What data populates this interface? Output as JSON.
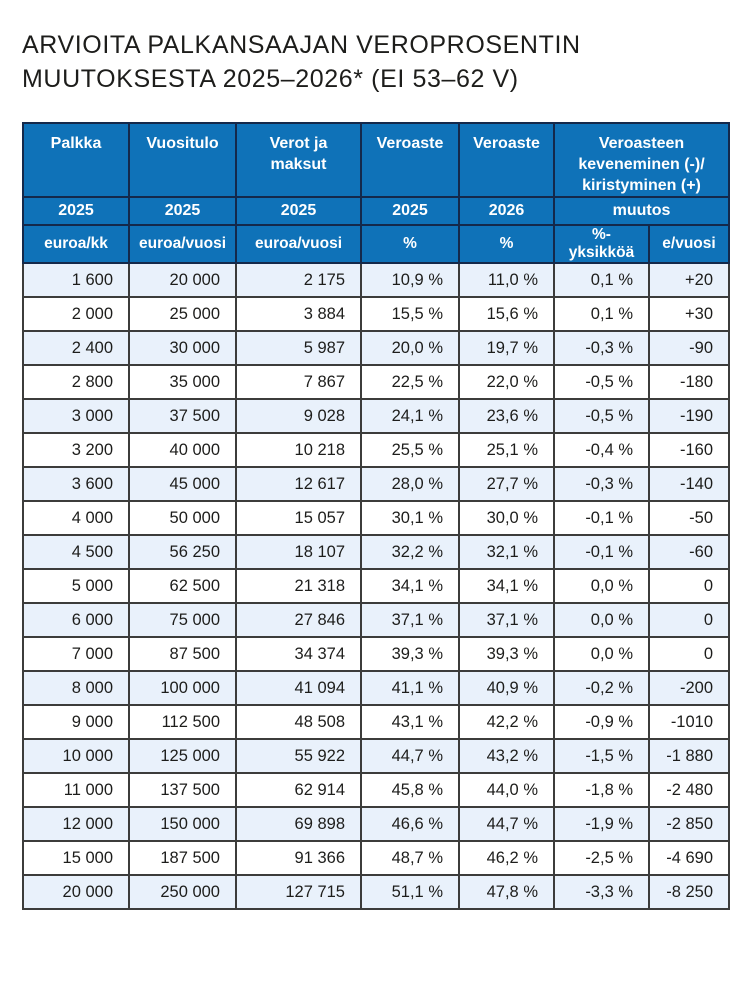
{
  "title": {
    "line1": "ARVIOITA PALKANSAAJAN VEROPROSENTIN",
    "line2": "MUUTOKSESTA 2025–2026* (EI 53–62 V)"
  },
  "colors": {
    "header_bg": "#0f72b8",
    "header_border": "#14294b",
    "header_text": "#ffffff",
    "grid_border": "#3c3c3b",
    "row_alt_bg": "#e9f1fb",
    "row_bg": "#ffffff",
    "title_text": "#1d1d1b",
    "body_text": "#1d1d1b"
  },
  "table": {
    "header": {
      "row1": [
        "Palkka",
        "Vuositulo",
        "Verot ja maksut",
        "Veroaste",
        "Veroaste",
        "Veroasteen keveneminen (-)/ kiristyminen (+)"
      ],
      "row2": [
        "2025",
        "2025",
        "2025",
        "2025",
        "2026",
        "muutos"
      ],
      "row3": [
        "euroa/kk",
        "euroa/vuosi",
        "euroa/vuosi",
        "%",
        "%",
        "%-yksikköä",
        "e/vuosi"
      ]
    },
    "rows": [
      [
        "1 600",
        "20 000",
        "2 175",
        "10,9 %",
        "11,0 %",
        "0,1 %",
        "+20"
      ],
      [
        "2 000",
        "25 000",
        "3 884",
        "15,5 %",
        "15,6 %",
        "0,1 %",
        "+30"
      ],
      [
        "2 400",
        "30 000",
        "5 987",
        "20,0 %",
        "19,7 %",
        "-0,3 %",
        "-90"
      ],
      [
        "2 800",
        "35 000",
        "7 867",
        "22,5 %",
        "22,0 %",
        "-0,5 %",
        "-180"
      ],
      [
        "3 000",
        "37 500",
        "9 028",
        "24,1 %",
        "23,6 %",
        "-0,5 %",
        "-190"
      ],
      [
        "3 200",
        "40 000",
        "10 218",
        "25,5 %",
        "25,1 %",
        "-0,4 %",
        "-160"
      ],
      [
        "3 600",
        "45 000",
        "12 617",
        "28,0 %",
        "27,7 %",
        "-0,3 %",
        "-140"
      ],
      [
        "4 000",
        "50 000",
        "15 057",
        "30,1 %",
        "30,0 %",
        "-0,1 %",
        "-50"
      ],
      [
        "4 500",
        "56 250",
        "18 107",
        "32,2 %",
        "32,1 %",
        "-0,1 %",
        "-60"
      ],
      [
        "5 000",
        "62 500",
        "21 318",
        "34,1 %",
        "34,1 %",
        "0,0 %",
        "0"
      ],
      [
        "6 000",
        "75 000",
        "27 846",
        "37,1 %",
        "37,1 %",
        "0,0 %",
        "0"
      ],
      [
        "7 000",
        "87 500",
        "34 374",
        "39,3 %",
        "39,3 %",
        "0,0 %",
        "0"
      ],
      [
        "8 000",
        "100 000",
        "41 094",
        "41,1 %",
        "40,9 %",
        "-0,2 %",
        "-200"
      ],
      [
        "9 000",
        "112 500",
        "48 508",
        "43,1 %",
        "42,2 %",
        "-0,9 %",
        "-1010"
      ],
      [
        "10 000",
        "125 000",
        "55 922",
        "44,7 %",
        "43,2 %",
        "-1,5 %",
        "-1 880"
      ],
      [
        "11 000",
        "137 500",
        "62 914",
        "45,8 %",
        "44,0 %",
        "-1,8 %",
        "-2 480"
      ],
      [
        "12 000",
        "150 000",
        "69 898",
        "46,6 %",
        "44,7 %",
        "-1,9 %",
        "-2 850"
      ],
      [
        "15 000",
        "187 500",
        "91 366",
        "48,7 %",
        "46,2 %",
        "-2,5 %",
        "-4 690"
      ],
      [
        "20 000",
        "250 000",
        "127 715",
        "51,1 %",
        "47,8 %",
        "-3,3 %",
        "-8 250"
      ]
    ]
  }
}
